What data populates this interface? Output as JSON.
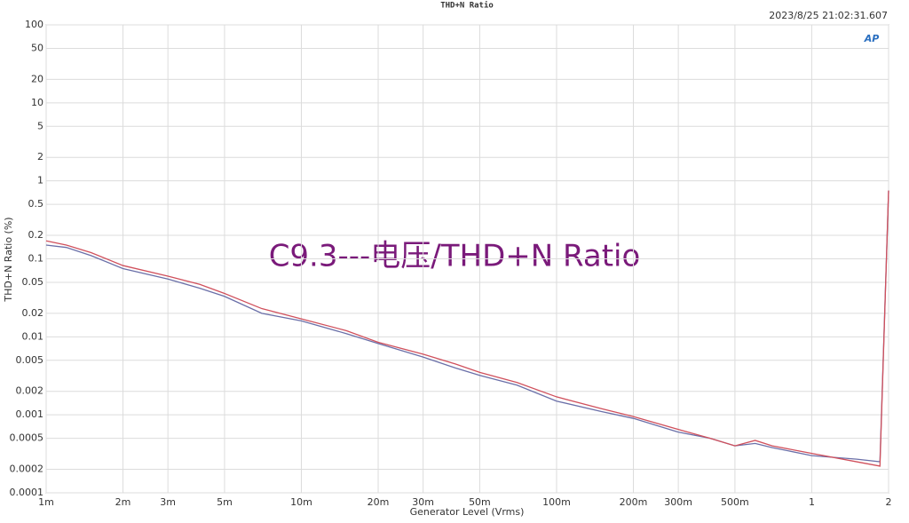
{
  "chart_data": {
    "type": "line",
    "title": "THD+N Ratio",
    "timestamp": "2023/8/25 21:02:31.607",
    "logo": "AP",
    "annotation": "C9.3---电压/THD+N Ratio",
    "x_label": "Generator Level (Vrms)",
    "y_label": "THD+N Ratio (%)",
    "x_log": true,
    "y_log": true,
    "grid": true,
    "xlim": [
      0.001,
      2
    ],
    "xticks": [
      {
        "value": 0.001,
        "label": "1m"
      },
      {
        "value": 0.002,
        "label": "2m"
      },
      {
        "value": 0.003,
        "label": "3m"
      },
      {
        "value": 0.005,
        "label": "5m"
      },
      {
        "value": 0.01,
        "label": "10m"
      },
      {
        "value": 0.02,
        "label": "20m"
      },
      {
        "value": 0.03,
        "label": "30m"
      },
      {
        "value": 0.05,
        "label": "50m"
      },
      {
        "value": 0.1,
        "label": "100m"
      },
      {
        "value": 0.2,
        "label": "200m"
      },
      {
        "value": 0.3,
        "label": "300m"
      },
      {
        "value": 0.5,
        "label": "500m"
      },
      1,
      2
    ],
    "ylim": [
      0.0001,
      100
    ],
    "yticks": [
      100,
      50,
      20,
      10,
      5,
      2,
      1,
      0.5,
      0.2,
      0.1,
      0.05,
      0.02,
      0.01,
      0.005,
      0.002,
      0.001,
      0.0005,
      0.0002,
      0.0001
    ],
    "x": [
      0.001,
      0.0012,
      0.0015,
      0.002,
      0.003,
      0.004,
      0.005,
      0.007,
      0.01,
      0.015,
      0.02,
      0.03,
      0.04,
      0.05,
      0.07,
      0.1,
      0.15,
      0.2,
      0.3,
      0.4,
      0.5,
      0.6,
      0.7,
      1,
      1.5,
      1.85,
      2
    ],
    "series": [
      {
        "color": "#6a6fa8",
        "values": [
          0.15,
          0.14,
          0.11,
          0.075,
          0.055,
          0.042,
          0.033,
          0.02,
          0.016,
          0.011,
          0.0082,
          0.0055,
          0.004,
          0.0032,
          0.0024,
          0.0015,
          0.0011,
          0.0009,
          0.0006,
          0.0005,
          0.0004,
          0.00043,
          0.00038,
          0.0003,
          0.00027,
          0.00025,
          0.75
        ]
      },
      {
        "color": "#d0505c",
        "values": [
          0.17,
          0.15,
          0.12,
          0.082,
          0.06,
          0.047,
          0.036,
          0.023,
          0.017,
          0.012,
          0.0085,
          0.006,
          0.0045,
          0.0035,
          0.0026,
          0.0017,
          0.0012,
          0.00095,
          0.00065,
          0.0005,
          0.0004,
          0.00047,
          0.0004,
          0.00032,
          0.00025,
          0.00022,
          0.75
        ]
      }
    ]
  }
}
